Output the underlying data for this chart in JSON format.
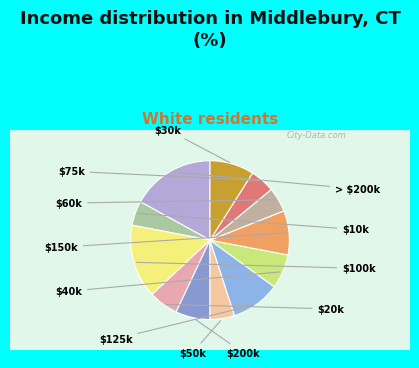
{
  "title": "Income distribution in Middlebury, CT\n(%)",
  "subtitle": "White residents",
  "background_top": "#00FFFF",
  "labels": [
    "> $200k",
    "$10k",
    "$100k",
    "$20k",
    "$200k",
    "$50k",
    "$125k",
    "$40k",
    "$150k",
    "$60k",
    "$75k",
    "$30k"
  ],
  "values": [
    17,
    5,
    15,
    6,
    7,
    5,
    10,
    7,
    9,
    5,
    5,
    9
  ],
  "colors": [
    "#b3a8d8",
    "#aac9a0",
    "#f5f07a",
    "#e8a8b0",
    "#8898d0",
    "#f5c8a0",
    "#8cb4e8",
    "#c8e87a",
    "#f0a060",
    "#c0b0a0",
    "#e07878",
    "#c8a030"
  ],
  "title_fontsize": 13,
  "subtitle_fontsize": 11,
  "subtitle_color": "#cc7733"
}
